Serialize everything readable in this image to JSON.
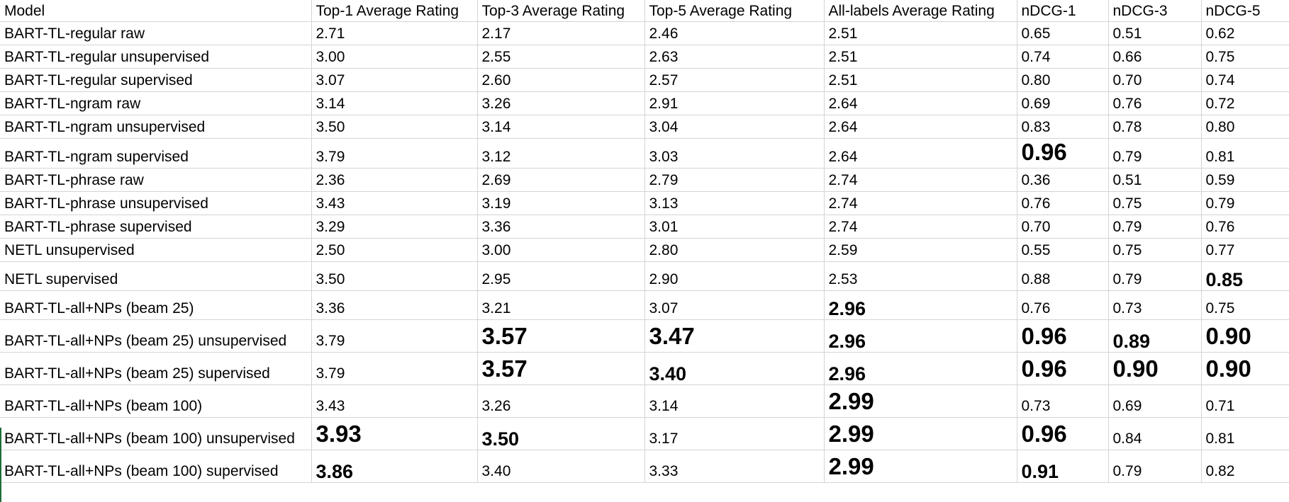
{
  "table": {
    "headers": [
      "Model",
      "Top-1 Average Rating",
      "Top-3 Average Rating",
      "Top-5 Average Rating",
      "All-labels Average Rating",
      "nDCG-1",
      "nDCG-3",
      "nDCG-5"
    ],
    "rows": [
      {
        "cells": [
          "BART-TL-regular raw",
          "2.71",
          "2.17",
          "2.46",
          "2.51",
          "0.65",
          "0.51",
          "0.62"
        ],
        "bold": [
          0,
          0,
          0,
          0,
          0,
          0,
          0,
          0
        ]
      },
      {
        "cells": [
          "BART-TL-regular unsupervised",
          "3.00",
          "2.55",
          "2.63",
          "2.51",
          "0.74",
          "0.66",
          "0.75"
        ],
        "bold": [
          0,
          0,
          0,
          0,
          0,
          0,
          0,
          0
        ]
      },
      {
        "cells": [
          "BART-TL-regular supervised",
          "3.07",
          "2.60",
          "2.57",
          "2.51",
          "0.80",
          "0.70",
          "0.74"
        ],
        "bold": [
          0,
          0,
          0,
          0,
          0,
          0,
          0,
          0
        ]
      },
      {
        "cells": [
          "BART-TL-ngram raw",
          "3.14",
          "3.26",
          "2.91",
          "2.64",
          "0.69",
          "0.76",
          "0.72"
        ],
        "bold": [
          0,
          0,
          0,
          0,
          0,
          0,
          0,
          0
        ]
      },
      {
        "cells": [
          "BART-TL-ngram unsupervised",
          "3.50",
          "3.14",
          "3.04",
          "2.64",
          "0.83",
          "0.78",
          "0.80"
        ],
        "bold": [
          0,
          0,
          0,
          0,
          0,
          0,
          0,
          0
        ]
      },
      {
        "cells": [
          "BART-TL-ngram supervised",
          "3.79",
          "3.12",
          "3.03",
          "2.64",
          "0.96",
          "0.79",
          "0.81"
        ],
        "bold": [
          0,
          0,
          0,
          0,
          0,
          2,
          0,
          0
        ]
      },
      {
        "cells": [
          "BART-TL-phrase raw",
          "2.36",
          "2.69",
          "2.79",
          "2.74",
          "0.36",
          "0.51",
          "0.59"
        ],
        "bold": [
          0,
          0,
          0,
          0,
          0,
          0,
          0,
          0
        ]
      },
      {
        "cells": [
          "BART-TL-phrase unsupervised",
          "3.43",
          "3.19",
          "3.13",
          "2.74",
          "0.76",
          "0.75",
          "0.79"
        ],
        "bold": [
          0,
          0,
          0,
          0,
          0,
          0,
          0,
          0
        ]
      },
      {
        "cells": [
          "BART-TL-phrase supervised",
          "3.29",
          "3.36",
          "3.01",
          "2.74",
          "0.70",
          "0.79",
          "0.76"
        ],
        "bold": [
          0,
          0,
          0,
          0,
          0,
          0,
          0,
          0
        ]
      },
      {
        "cells": [
          "NETL unsupervised",
          "2.50",
          "3.00",
          "2.80",
          "2.59",
          "0.55",
          "0.75",
          "0.77"
        ],
        "bold": [
          0,
          0,
          0,
          0,
          0,
          0,
          0,
          0
        ]
      },
      {
        "cells": [
          "NETL supervised",
          "3.50",
          "2.95",
          "2.90",
          "2.53",
          "0.88",
          "0.79",
          "0.85"
        ],
        "bold": [
          0,
          0,
          0,
          0,
          0,
          0,
          0,
          1
        ]
      },
      {
        "cells": [
          "BART-TL-all+NPs (beam 25)",
          "3.36",
          "3.21",
          "3.07",
          "2.96",
          "0.76",
          "0.73",
          "0.75"
        ],
        "bold": [
          0,
          0,
          0,
          0,
          1,
          0,
          0,
          0
        ]
      },
      {
        "cells": [
          "BART-TL-all+NPs (beam 25) unsupervised",
          "3.79",
          "3.57",
          "3.47",
          "2.96",
          "0.96",
          "0.89",
          "0.90"
        ],
        "bold": [
          0,
          0,
          2,
          2,
          1,
          2,
          1,
          2
        ]
      },
      {
        "cells": [
          "BART-TL-all+NPs (beam 25) supervised",
          "3.79",
          "3.57",
          "3.40",
          "2.96",
          "0.96",
          "0.90",
          "0.90"
        ],
        "bold": [
          0,
          0,
          2,
          1,
          1,
          2,
          2,
          2
        ]
      },
      {
        "cells": [
          "BART-TL-all+NPs (beam 100)",
          "3.43",
          "3.26",
          "3.14",
          "2.99",
          "0.73",
          "0.69",
          "0.71"
        ],
        "bold": [
          0,
          0,
          0,
          0,
          2,
          0,
          0,
          0
        ]
      },
      {
        "cells": [
          "BART-TL-all+NPs (beam 100) unsupervised",
          "3.93",
          "3.50",
          "3.17",
          "2.99",
          "0.96",
          "0.84",
          "0.81"
        ],
        "bold": [
          0,
          2,
          1,
          0,
          2,
          2,
          0,
          0
        ]
      },
      {
        "cells": [
          "BART-TL-all+NPs (beam 100) supervised",
          "3.86",
          "3.40",
          "3.33",
          "2.99",
          "0.91",
          "0.79",
          "0.82"
        ],
        "bold": [
          0,
          1,
          0,
          0,
          2,
          1,
          0,
          0
        ]
      }
    ]
  }
}
